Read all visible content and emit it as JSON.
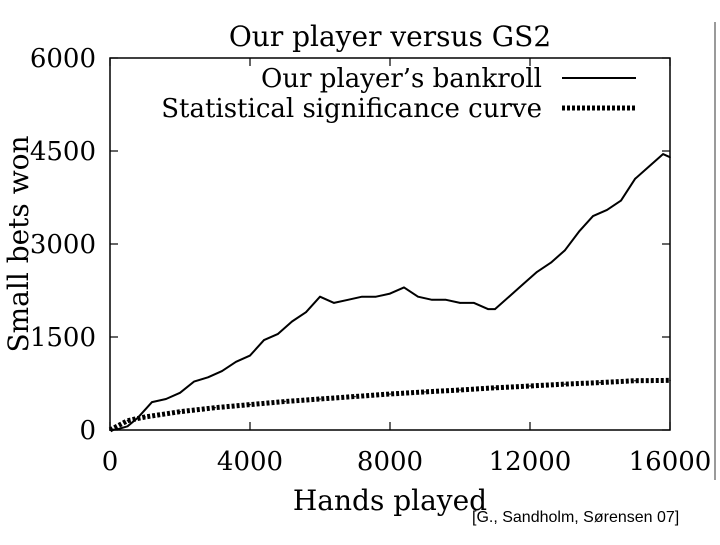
{
  "citation": "[G., Sandholm, Sørensen 07]",
  "chart_data": {
    "type": "line",
    "title": "Our player versus GS2",
    "xlabel": "Hands played",
    "ylabel": "Small bets won",
    "xlim": [
      0,
      16000
    ],
    "ylim": [
      0,
      6000
    ],
    "xticks": [
      0,
      4000,
      8000,
      12000,
      16000
    ],
    "yticks": [
      0,
      1500,
      3000,
      4500,
      6000
    ],
    "grid": false,
    "legend_position": "top-right",
    "series": [
      {
        "name": "Our player’s bankroll",
        "style": "solid",
        "color": "#000000",
        "x": [
          0,
          200,
          500,
          800,
          1200,
          1600,
          2000,
          2400,
          2800,
          3200,
          3600,
          4000,
          4400,
          4800,
          5200,
          5600,
          6000,
          6400,
          6800,
          7200,
          7600,
          8000,
          8400,
          8800,
          9200,
          9600,
          10000,
          10400,
          10800,
          11000,
          11400,
          11800,
          12200,
          12600,
          13000,
          13400,
          13800,
          14200,
          14600,
          15000,
          15400,
          15800,
          16000
        ],
        "y": [
          0,
          10,
          60,
          200,
          450,
          500,
          600,
          780,
          850,
          950,
          1100,
          1200,
          1450,
          1550,
          1750,
          1900,
          2150,
          2050,
          2100,
          2150,
          2150,
          2200,
          2300,
          2150,
          2100,
          2100,
          2050,
          2050,
          1950,
          1950,
          2150,
          2350,
          2550,
          2700,
          2900,
          3200,
          3450,
          3550,
          3700,
          4050,
          4250,
          4450,
          4400
        ]
      },
      {
        "name": "Statistical significance curve",
        "style": "dotted",
        "color": "#000000",
        "x": [
          0,
          500,
          1000,
          2000,
          3000,
          4000,
          5000,
          6000,
          7000,
          8000,
          9000,
          10000,
          11000,
          12000,
          13000,
          14000,
          15000,
          16000
        ],
        "y": [
          0,
          150,
          210,
          295,
          360,
          410,
          460,
          500,
          540,
          580,
          615,
          645,
          680,
          710,
          740,
          765,
          795,
          800
        ]
      }
    ]
  }
}
